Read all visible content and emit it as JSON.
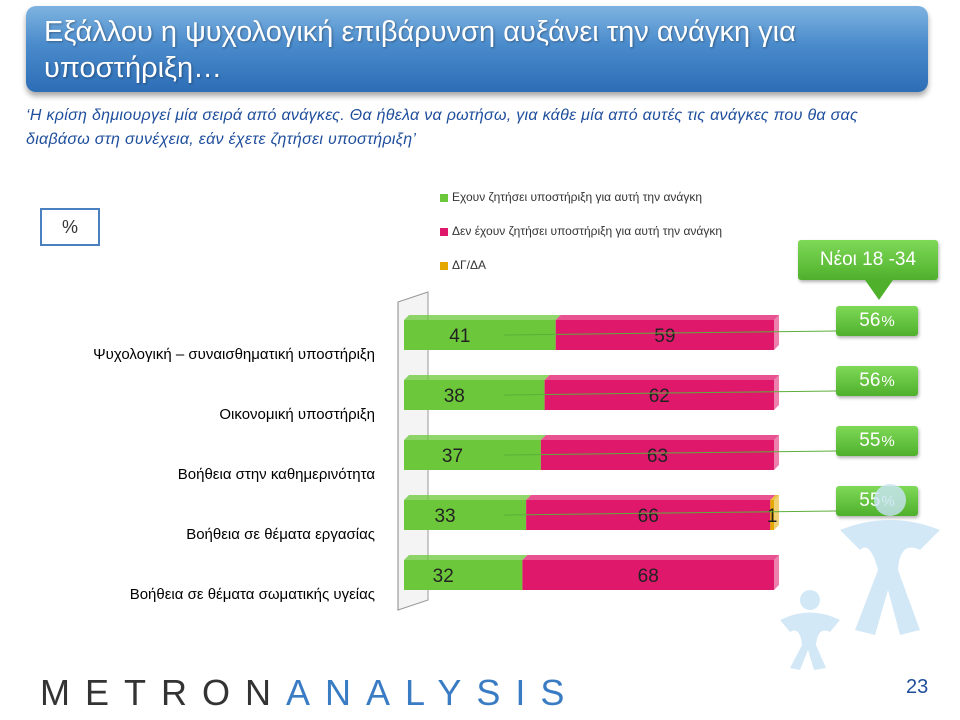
{
  "title": "Εξάλλου η ψυχολογική επιβάρυνση αυξάνει την ανάγκη για υποστήριξη…",
  "subtitle": "‘Η κρίση δημιουργεί μία σειρά από ανάγκες. Θα ήθελα να ρωτήσω, για κάθε μία από αυτές τις ανάγκες που θα σας διαβάσω στη συνέχεια, εάν έχετε ζητήσει υποστήριξη’",
  "unit_label": "%",
  "youth_label": "Νέοι 18 -34",
  "page_number": "23",
  "brand": {
    "metron": "METRON",
    "analysis": "ANALYSIS"
  },
  "colors": {
    "green": "#6cc83a",
    "pink": "#e0186c",
    "gold": "#e5a800"
  },
  "chart_data": {
    "type": "bar",
    "orientation": "horizontal",
    "stacked": true,
    "categories": [
      "Ψυχολογική – συναισθηματική υποστήριξη",
      "Οικονομική υποστήριξη",
      "Βοήθεια στην καθημερινότητα",
      "Βοήθεια σε θέματα εργασίας",
      "Βοήθεια σε θέματα σωματικής υγείας"
    ],
    "series": [
      {
        "name": "Εχουν ζητήσει υποστήριξη για αυτή την ανάγκη",
        "values": [
          41,
          38,
          37,
          33,
          32
        ]
      },
      {
        "name": "Δεν έχουν ζητήσει υποστήριξη για αυτή την ανάγκη",
        "values": [
          59,
          62,
          63,
          66,
          68
        ]
      },
      {
        "name": "ΔΓ/ΔΑ",
        "values": [
          0,
          0,
          0,
          1,
          0
        ]
      }
    ],
    "youth_values": [
      56,
      56,
      55,
      55,
      null
    ],
    "xlim": [
      0,
      100
    ],
    "legend_position": "top"
  }
}
